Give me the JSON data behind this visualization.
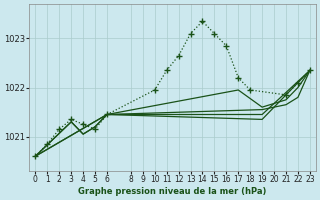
{
  "title": "Graphe pression niveau de la mer (hPa)",
  "bg_color": "#cce8ee",
  "grid_color": "#aacccc",
  "line_color": "#1a5218",
  "xlim": [
    -0.5,
    23.5
  ],
  "ylim": [
    1020.3,
    1023.7
  ],
  "yticks": [
    1021,
    1022,
    1023
  ],
  "xticks": [
    0,
    1,
    2,
    3,
    4,
    5,
    6,
    8,
    9,
    10,
    11,
    12,
    13,
    14,
    15,
    16,
    17,
    18,
    19,
    20,
    21,
    22,
    23
  ],
  "line1_x": [
    0,
    1,
    2,
    3,
    4,
    5,
    6,
    10,
    11,
    12,
    13,
    14,
    15,
    16,
    17,
    18,
    21,
    22,
    23
  ],
  "line1_y": [
    1020.6,
    1020.85,
    1021.15,
    1021.35,
    1021.25,
    1021.15,
    1021.45,
    1021.95,
    1022.35,
    1022.65,
    1023.1,
    1023.35,
    1023.1,
    1022.85,
    1022.2,
    1021.95,
    1021.85,
    1022.1,
    1022.35
  ],
  "line2_x": [
    0,
    3,
    4,
    5,
    6,
    17,
    19,
    21,
    22,
    23
  ],
  "line2_y": [
    1020.6,
    1021.3,
    1021.05,
    1021.2,
    1021.45,
    1021.95,
    1021.6,
    1021.75,
    1022.0,
    1022.35
  ],
  "line3_x": [
    0,
    3,
    4,
    5,
    6,
    19,
    21,
    22,
    23
  ],
  "line3_y": [
    1020.6,
    1021.3,
    1021.05,
    1021.2,
    1021.45,
    1021.55,
    1021.65,
    1021.8,
    1022.35
  ],
  "line4_x": [
    0,
    6,
    19,
    23
  ],
  "line4_y": [
    1020.6,
    1021.45,
    1021.45,
    1022.35
  ],
  "line5_x": [
    0,
    6,
    19,
    23
  ],
  "line5_y": [
    1020.6,
    1021.45,
    1021.35,
    1022.35
  ]
}
